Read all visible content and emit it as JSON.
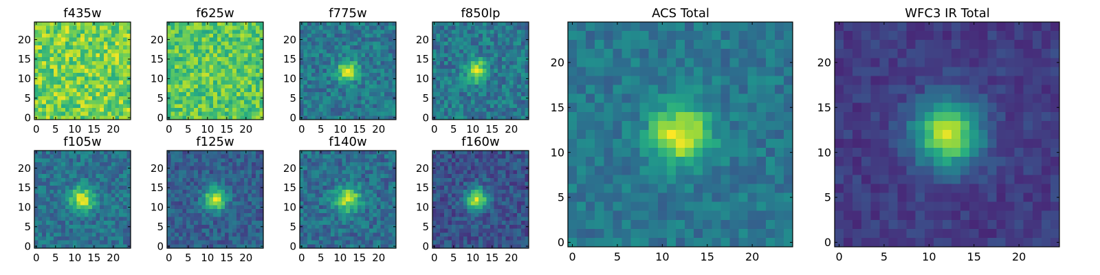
{
  "figure": {
    "background": "#ffffff"
  },
  "chart_data": [
    {
      "type": "heatmap",
      "title": "f435w",
      "image_size": 25,
      "peak": [
        12,
        12
      ],
      "sigma": 0,
      "peak_strength": 0.0,
      "base": 0.8,
      "noise": 0.18,
      "seed": 11,
      "xlim": [
        -0.5,
        24.5
      ],
      "ylim": [
        -0.5,
        24.5
      ],
      "xticks": [
        0,
        5,
        10,
        15,
        20
      ],
      "yticks": [
        0,
        5,
        10,
        15,
        20
      ],
      "colormap": "viridis",
      "grid": false
    },
    {
      "type": "heatmap",
      "title": "f625w",
      "image_size": 25,
      "peak": [
        12,
        12
      ],
      "sigma": 2.5,
      "peak_strength": 0.05,
      "base": 0.74,
      "noise": 0.16,
      "seed": 23,
      "xlim": [
        -0.5,
        24.5
      ],
      "ylim": [
        -0.5,
        24.5
      ],
      "xticks": [
        0,
        5,
        10,
        15,
        20
      ],
      "yticks": [
        0,
        5,
        10,
        15,
        20
      ],
      "colormap": "viridis",
      "grid": false
    },
    {
      "type": "heatmap",
      "title": "f775w",
      "image_size": 25,
      "peak": [
        12,
        12
      ],
      "sigma": 1.9,
      "peak_strength": 0.55,
      "base": 0.4,
      "noise": 0.14,
      "seed": 37,
      "xlim": [
        -0.5,
        24.5
      ],
      "ylim": [
        -0.5,
        24.5
      ],
      "xticks": [
        0,
        5,
        10,
        15,
        20
      ],
      "yticks": [
        0,
        5,
        10,
        15,
        20
      ],
      "colormap": "viridis",
      "grid": false
    },
    {
      "type": "heatmap",
      "title": "f850lp",
      "image_size": 25,
      "peak": [
        11,
        12
      ],
      "sigma": 1.9,
      "peak_strength": 0.55,
      "base": 0.4,
      "noise": 0.15,
      "seed": 41,
      "xlim": [
        -0.5,
        24.5
      ],
      "ylim": [
        -0.5,
        24.5
      ],
      "xticks": [
        0,
        5,
        10,
        15,
        20
      ],
      "yticks": [
        0,
        5,
        10,
        15,
        20
      ],
      "colormap": "viridis",
      "grid": false
    },
    {
      "type": "heatmap",
      "title": "f105w",
      "image_size": 25,
      "peak": [
        12,
        12
      ],
      "sigma": 2.2,
      "peak_strength": 0.55,
      "base": 0.38,
      "noise": 0.13,
      "seed": 53,
      "xlim": [
        -0.5,
        24.5
      ],
      "ylim": [
        -0.5,
        24.5
      ],
      "xticks": [
        0,
        5,
        10,
        15,
        20
      ],
      "yticks": [
        0,
        5,
        10,
        15,
        20
      ],
      "colormap": "viridis",
      "grid": false
    },
    {
      "type": "heatmap",
      "title": "f125w",
      "image_size": 25,
      "peak": [
        12,
        12
      ],
      "sigma": 2.1,
      "peak_strength": 0.62,
      "base": 0.3,
      "noise": 0.12,
      "seed": 61,
      "xlim": [
        -0.5,
        24.5
      ],
      "ylim": [
        -0.5,
        24.5
      ],
      "xticks": [
        0,
        5,
        10,
        15,
        20
      ],
      "yticks": [
        0,
        5,
        10,
        15,
        20
      ],
      "colormap": "viridis",
      "grid": false
    },
    {
      "type": "heatmap",
      "title": "f140w",
      "image_size": 25,
      "peak": [
        12,
        12
      ],
      "sigma": 2.3,
      "peak_strength": 0.55,
      "base": 0.36,
      "noise": 0.14,
      "seed": 73,
      "xlim": [
        -0.5,
        24.5
      ],
      "ylim": [
        -0.5,
        24.5
      ],
      "xticks": [
        0,
        5,
        10,
        15,
        20
      ],
      "yticks": [
        0,
        5,
        10,
        15,
        20
      ],
      "colormap": "viridis",
      "grid": false
    },
    {
      "type": "heatmap",
      "title": "f160w",
      "image_size": 25,
      "peak": [
        11,
        12
      ],
      "sigma": 2.0,
      "peak_strength": 0.65,
      "base": 0.26,
      "noise": 0.12,
      "seed": 89,
      "xlim": [
        -0.5,
        24.5
      ],
      "ylim": [
        -0.5,
        24.5
      ],
      "xticks": [
        0,
        5,
        10,
        15,
        20
      ],
      "yticks": [
        0,
        5,
        10,
        15,
        20
      ],
      "colormap": "viridis",
      "grid": false
    },
    {
      "type": "heatmap",
      "title": "ACS Total",
      "image_size": 25,
      "peak": [
        12,
        12
      ],
      "sigma": 2.3,
      "peak_strength": 0.58,
      "base": 0.4,
      "noise": 0.1,
      "seed": 97,
      "xlim": [
        -0.5,
        24.5
      ],
      "ylim": [
        -0.5,
        24.5
      ],
      "xticks": [
        0,
        5,
        10,
        15,
        20
      ],
      "yticks": [
        0,
        5,
        10,
        15,
        20
      ],
      "colormap": "viridis",
      "grid": false
    },
    {
      "type": "heatmap",
      "title": "WFC3 IR Total",
      "image_size": 25,
      "peak": [
        12,
        12
      ],
      "sigma": 2.6,
      "peak_strength": 0.72,
      "base": 0.18,
      "noise": 0.07,
      "seed": 101,
      "xlim": [
        -0.5,
        24.5
      ],
      "ylim": [
        -0.5,
        24.5
      ],
      "xticks": [
        0,
        5,
        10,
        15,
        20
      ],
      "yticks": [
        0,
        5,
        10,
        15,
        20
      ],
      "colormap": "viridis",
      "grid": false
    }
  ]
}
